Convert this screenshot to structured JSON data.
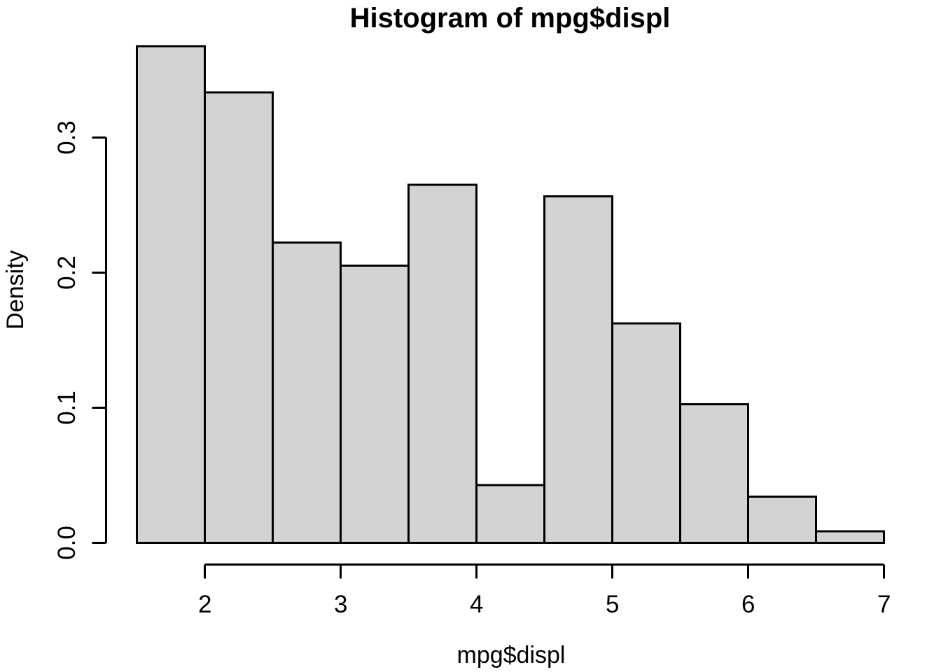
{
  "chart_data": {
    "type": "bar",
    "subtype": "histogram",
    "title": "Histogram of mpg$displ",
    "xlabel": "mpg$displ",
    "ylabel": "Density",
    "xlim": [
      1.5,
      7.0
    ],
    "ylim": [
      0,
      0.3675
    ],
    "x_ticks": [
      2,
      3,
      4,
      5,
      6,
      7
    ],
    "y_ticks": [
      "0.0",
      "0.1",
      "0.2",
      "0.3"
    ],
    "bin_width": 0.5,
    "bins": [
      {
        "x0": 1.5,
        "x1": 2.0,
        "density": 0.3675
      },
      {
        "x0": 2.0,
        "x1": 2.5,
        "density": 0.3333
      },
      {
        "x0": 2.5,
        "x1": 3.0,
        "density": 0.2222
      },
      {
        "x0": 3.0,
        "x1": 3.5,
        "density": 0.2051
      },
      {
        "x0": 3.5,
        "x1": 4.0,
        "density": 0.265
      },
      {
        "x0": 4.0,
        "x1": 4.5,
        "density": 0.0427
      },
      {
        "x0": 4.5,
        "x1": 5.0,
        "density": 0.2564
      },
      {
        "x0": 5.0,
        "x1": 5.5,
        "density": 0.1624
      },
      {
        "x0": 5.5,
        "x1": 6.0,
        "density": 0.1026
      },
      {
        "x0": 6.0,
        "x1": 6.5,
        "density": 0.0342
      },
      {
        "x0": 6.5,
        "x1": 7.0,
        "density": 0.0085
      }
    ],
    "grid": false,
    "legend_position": "none",
    "colors": {
      "bar_fill": "#d3d3d3",
      "bar_stroke": "#000000",
      "axis": "#000000",
      "text": "#000000",
      "background": "#ffffff"
    }
  }
}
